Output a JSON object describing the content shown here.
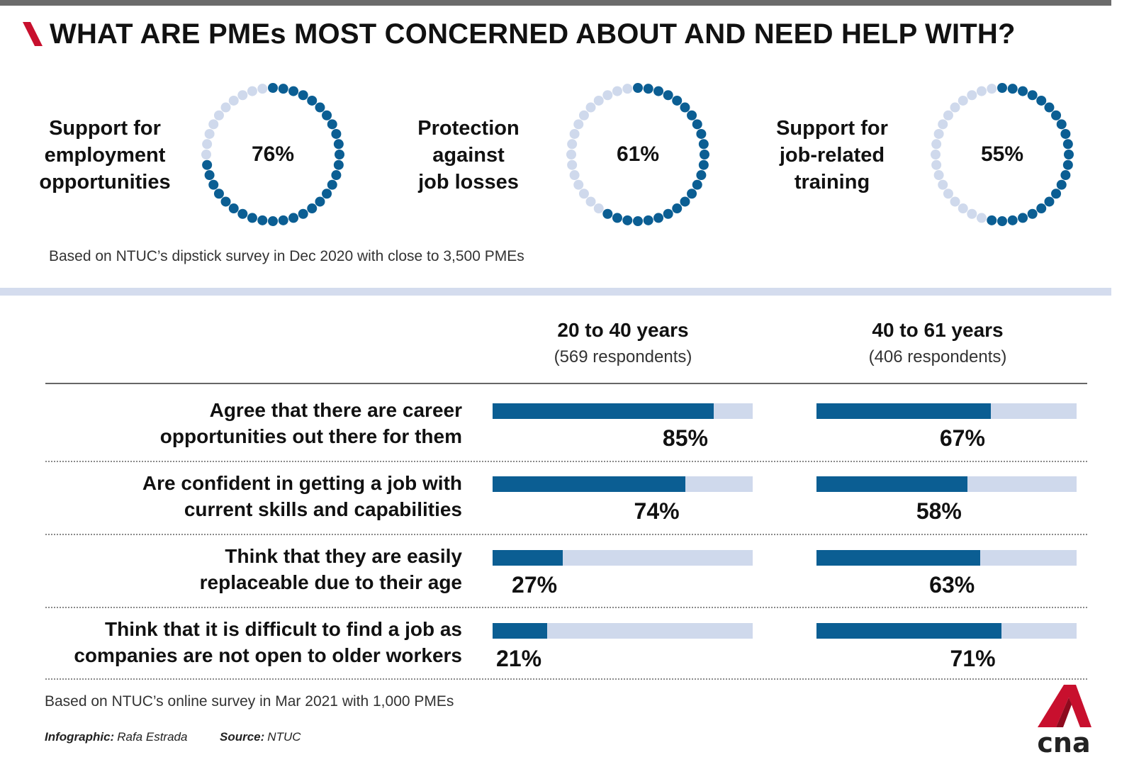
{
  "title": "WHAT ARE PMEs MOST CONCERNED ABOUT AND NEED HELP WITH?",
  "colors": {
    "accent_red": "#c8102e",
    "dark_blue": "#0b5e93",
    "light_blue": "#cfd9ec"
  },
  "rings": [
    {
      "label_lines": [
        "Support for",
        "employment",
        "opportunities"
      ],
      "value": 76,
      "value_label": "76%"
    },
    {
      "label_lines": [
        "Protection",
        "against",
        "job losses"
      ],
      "value": 61,
      "value_label": "61%"
    },
    {
      "label_lines": [
        "Support for",
        "job-related",
        "training"
      ],
      "value": 55,
      "value_label": "55%"
    }
  ],
  "note_top": "Based on NTUC’s dipstick survey in Dec 2020 with close to 3,500 PMEs",
  "columns": [
    {
      "title": "20 to 40 years",
      "subtitle": "(569 respondents)"
    },
    {
      "title": "40 to 61 years",
      "subtitle": "(406 respondents)"
    }
  ],
  "rows": [
    {
      "label_lines": [
        "Agree that there are career",
        "opportunities out there for them"
      ],
      "values": [
        85,
        67
      ],
      "labels": [
        "85%",
        "67%"
      ]
    },
    {
      "label_lines": [
        "Are confident in getting a job with",
        "current skills and capabilities"
      ],
      "values": [
        74,
        58
      ],
      "labels": [
        "74%",
        "58%"
      ]
    },
    {
      "label_lines": [
        "Think that they are easily",
        "replaceable due to their age"
      ],
      "values": [
        27,
        63
      ],
      "labels": [
        "27%",
        "63%"
      ]
    },
    {
      "label_lines": [
        "Think that it is difficult to find a job as",
        "companies are not open to older workers"
      ],
      "values": [
        21,
        71
      ],
      "labels": [
        "21%",
        "71%"
      ]
    }
  ],
  "chart_data": [
    {
      "type": "pie",
      "title": "WHAT ARE PMEs MOST CONCERNED ABOUT AND NEED HELP WITH?",
      "categories": [
        "Support for employment opportunities",
        "Protection against job losses",
        "Support for job-related training"
      ],
      "values": [
        76,
        61,
        55
      ],
      "unit": "%",
      "note": "Based on NTUC’s dipstick survey in Dec 2020 with close to 3,500 PMEs"
    },
    {
      "type": "bar",
      "orientation": "horizontal",
      "categories": [
        "Agree that there are career opportunities out there for them",
        "Are confident in getting a job with current skills and capabilities",
        "Think that they are easily replaceable due to their age",
        "Think that it is difficult to find a job as companies are not open to older workers"
      ],
      "series": [
        {
          "name": "20 to 40 years (569 respondents)",
          "values": [
            85,
            74,
            27,
            21
          ]
        },
        {
          "name": "40 to 61 years (406 respondents)",
          "values": [
            67,
            58,
            63,
            71
          ]
        }
      ],
      "xlim": [
        0,
        100
      ],
      "unit": "%",
      "note": "Based on NTUC’s online survey in Mar 2021 with 1,000 PMEs"
    }
  ],
  "note_bottom": "Based on NTUC’s online survey in Mar 2021 with 1,000 PMEs",
  "credits": {
    "infographic_label": "Infographic:",
    "infographic_name": "Rafa Estrada",
    "source_label": "Source:",
    "source_name": "NTUC"
  },
  "logo": {
    "text": "cna"
  }
}
